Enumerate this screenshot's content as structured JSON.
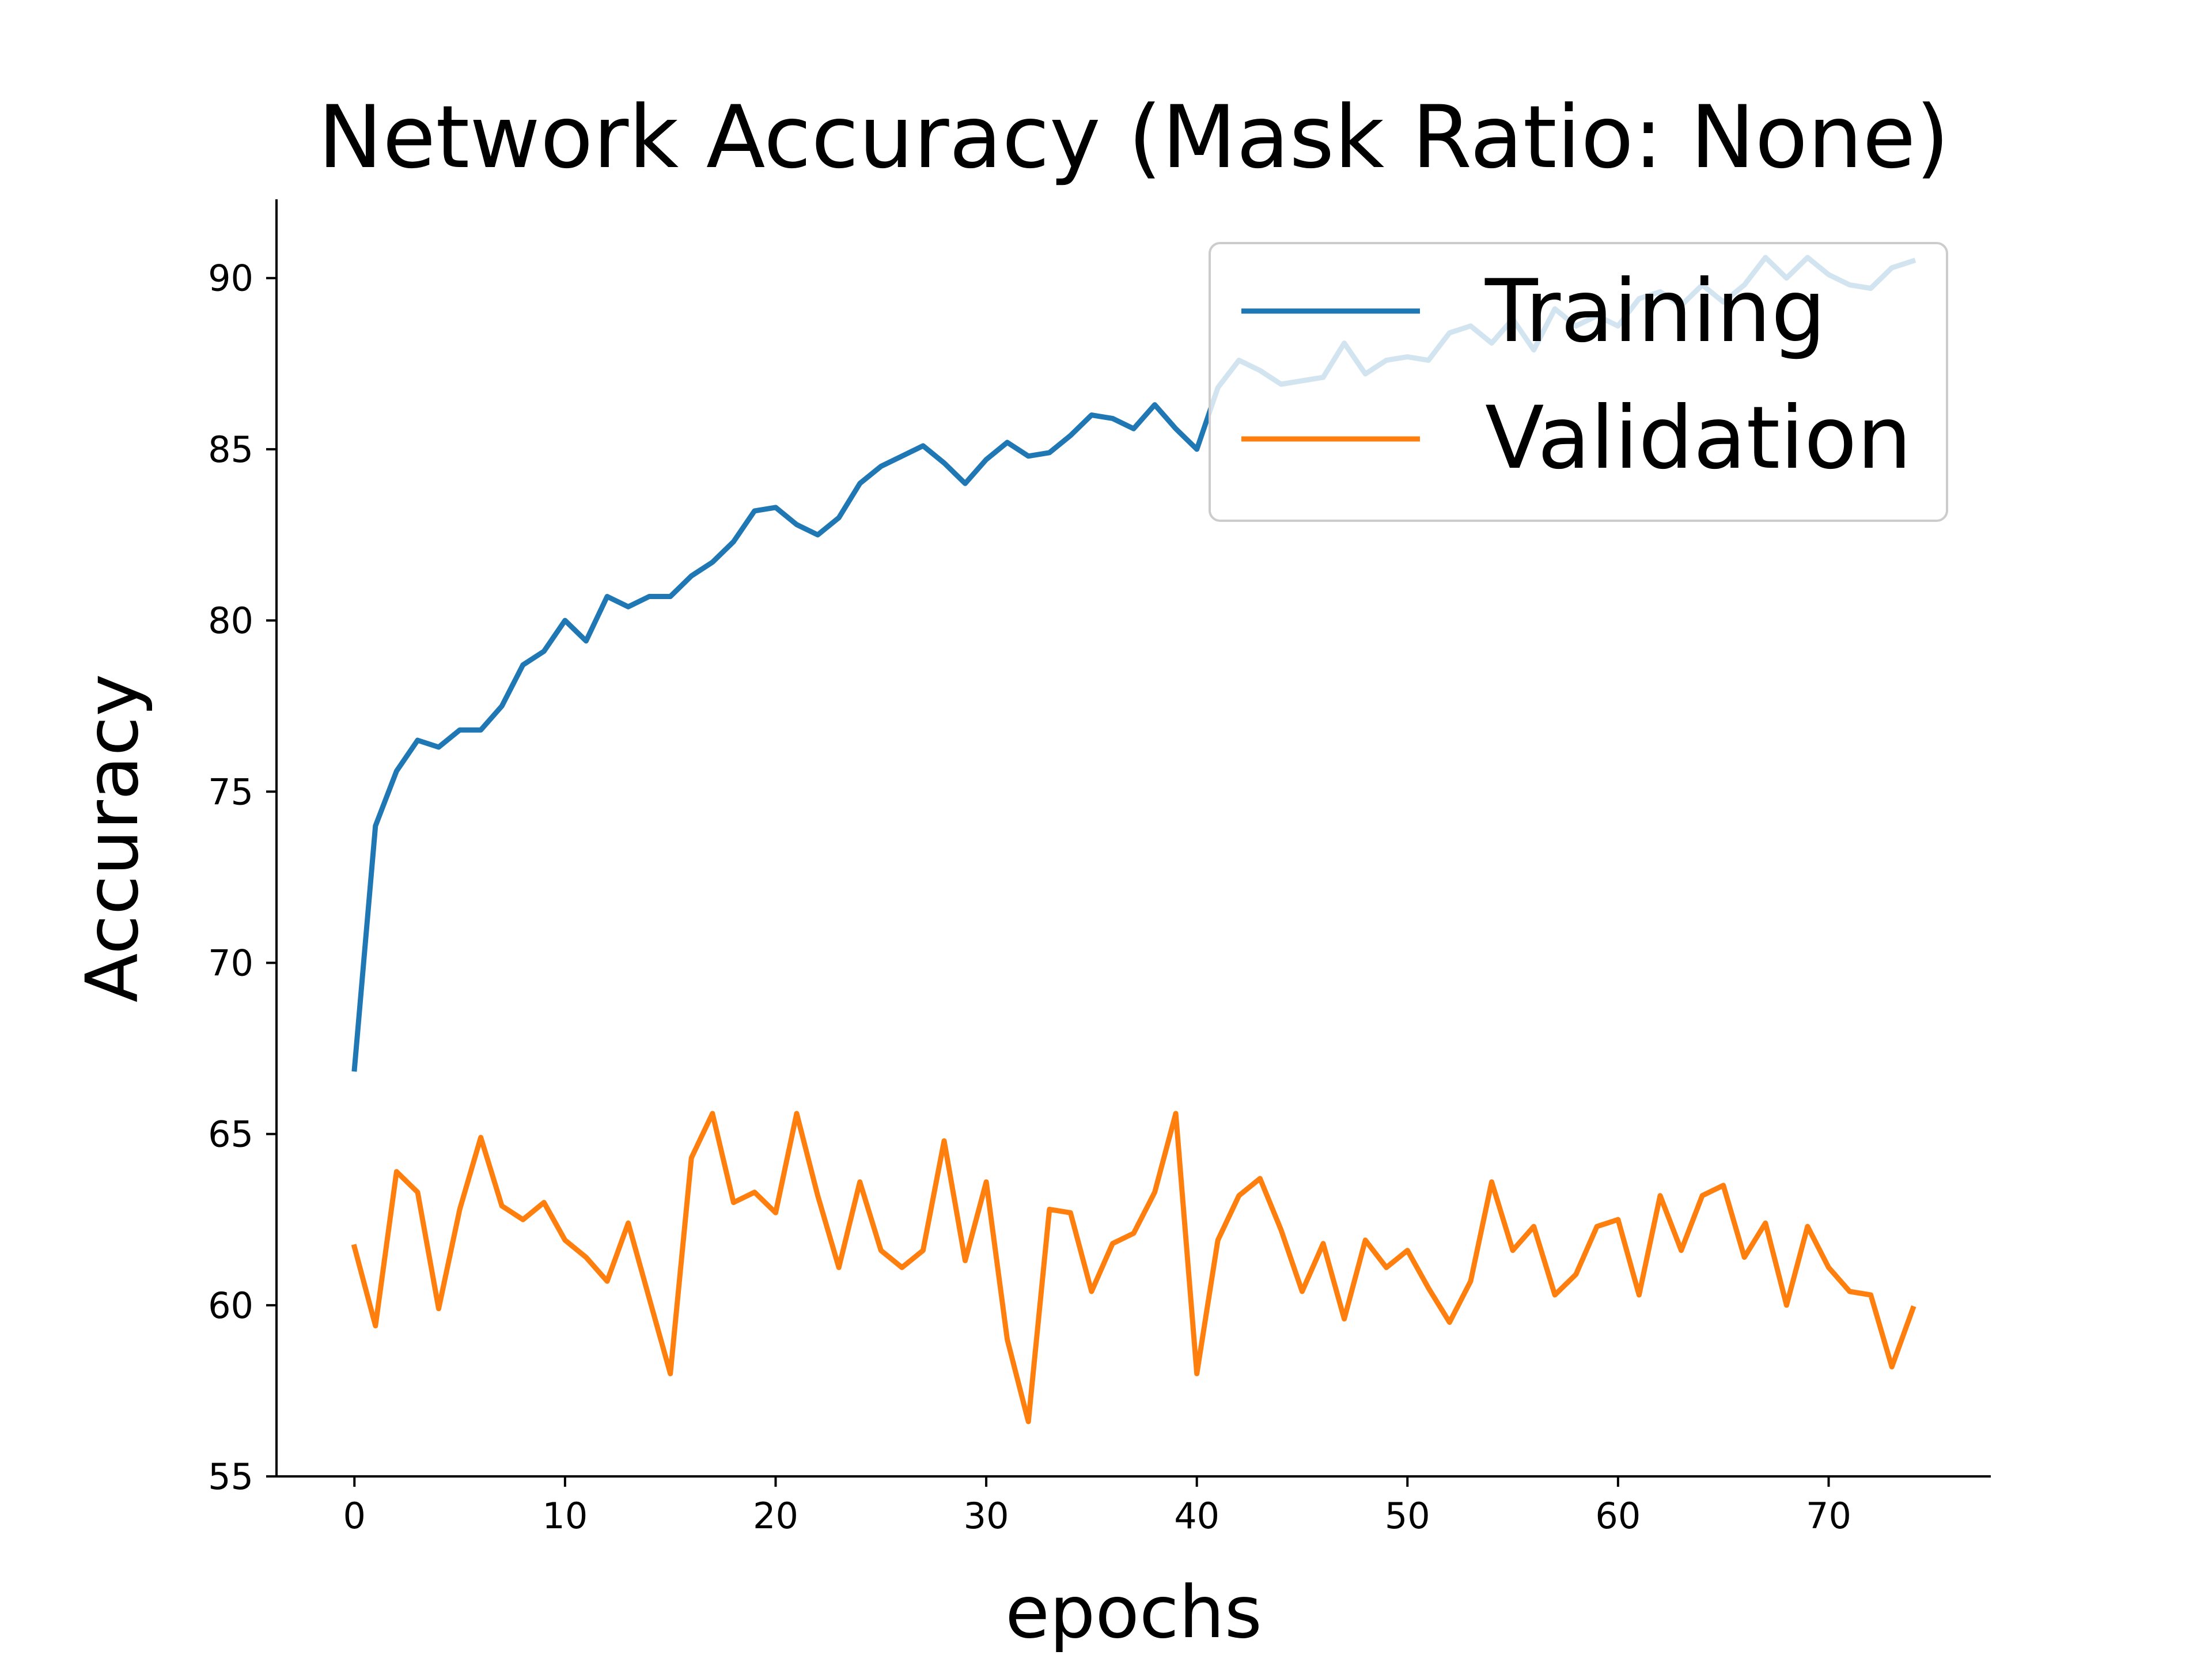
{
  "chart_data": {
    "type": "line",
    "title": "Network Accuracy (Mask Ratio: None)",
    "xlabel": "epochs",
    "ylabel": "Accuracy",
    "xlim": [
      -3.7,
      77.7
    ],
    "ylim": [
      55,
      92.3
    ],
    "xticks": [
      "0",
      "10",
      "20",
      "30",
      "40",
      "50",
      "60",
      "70"
    ],
    "yticks": [
      "55",
      "60",
      "65",
      "70",
      "75",
      "80",
      "85",
      "90"
    ],
    "grid": false,
    "legend_position": "top-right",
    "colors": {
      "Training": "#1f77b4",
      "Validation": "#ff7f0e",
      "legend_frame": "#cccccc"
    },
    "x": [
      0,
      1,
      2,
      3,
      4,
      5,
      6,
      7,
      8,
      9,
      10,
      11,
      12,
      13,
      14,
      15,
      16,
      17,
      18,
      19,
      20,
      21,
      22,
      23,
      24,
      25,
      26,
      27,
      28,
      29,
      30,
      31,
      32,
      33,
      34,
      35,
      36,
      37,
      38,
      39,
      40,
      41,
      42,
      43,
      44,
      45,
      46,
      47,
      48,
      49,
      50,
      51,
      52,
      53,
      54,
      55,
      56,
      57,
      58,
      59,
      60,
      61,
      62,
      63,
      64,
      65,
      66,
      67,
      68,
      69,
      70,
      71,
      72,
      73,
      74
    ],
    "series": [
      {
        "name": "Training",
        "values": [
          66.9,
          74.0,
          75.6,
          76.5,
          76.3,
          76.8,
          76.8,
          77.5,
          78.7,
          79.1,
          80.0,
          79.4,
          80.7,
          80.4,
          80.7,
          80.7,
          81.3,
          81.7,
          82.3,
          83.2,
          83.3,
          82.8,
          82.5,
          83.0,
          84.0,
          84.5,
          84.8,
          85.1,
          84.6,
          84.0,
          84.7,
          85.2,
          84.8,
          84.9,
          85.4,
          86.0,
          85.9,
          85.6,
          86.3,
          85.6,
          85.0,
          86.8,
          87.6,
          87.3,
          86.9,
          87.0,
          87.1,
          88.1,
          87.2,
          87.6,
          87.7,
          87.6,
          88.4,
          88.6,
          88.1,
          88.8,
          87.9,
          89.1,
          88.6,
          88.9,
          88.6,
          89.4,
          89.6,
          89.2,
          89.8,
          89.3,
          89.8,
          90.6,
          90.0,
          90.6,
          90.1,
          89.8,
          89.7,
          90.3,
          90.5
        ]
      },
      {
        "name": "Validation",
        "values": [
          61.7,
          59.4,
          63.9,
          63.3,
          59.9,
          62.8,
          64.9,
          62.9,
          62.5,
          63.0,
          61.9,
          61.4,
          60.7,
          62.4,
          60.2,
          58.0,
          64.3,
          65.6,
          63.0,
          63.3,
          62.7,
          65.6,
          63.2,
          61.1,
          63.6,
          61.6,
          61.1,
          61.6,
          64.8,
          61.3,
          63.6,
          59.0,
          56.6,
          62.8,
          62.7,
          60.4,
          61.8,
          62.1,
          63.3,
          65.6,
          58.0,
          61.9,
          63.2,
          63.7,
          62.2,
          60.4,
          61.8,
          59.6,
          61.9,
          61.1,
          61.6,
          60.5,
          59.5,
          60.7,
          63.6,
          61.6,
          62.3,
          60.3,
          60.9,
          62.3,
          62.5,
          60.3,
          63.2,
          61.6,
          63.2,
          63.5,
          61.4,
          62.4,
          60.0,
          62.3,
          61.1,
          60.4,
          60.3,
          58.2,
          59.9
        ]
      }
    ]
  }
}
